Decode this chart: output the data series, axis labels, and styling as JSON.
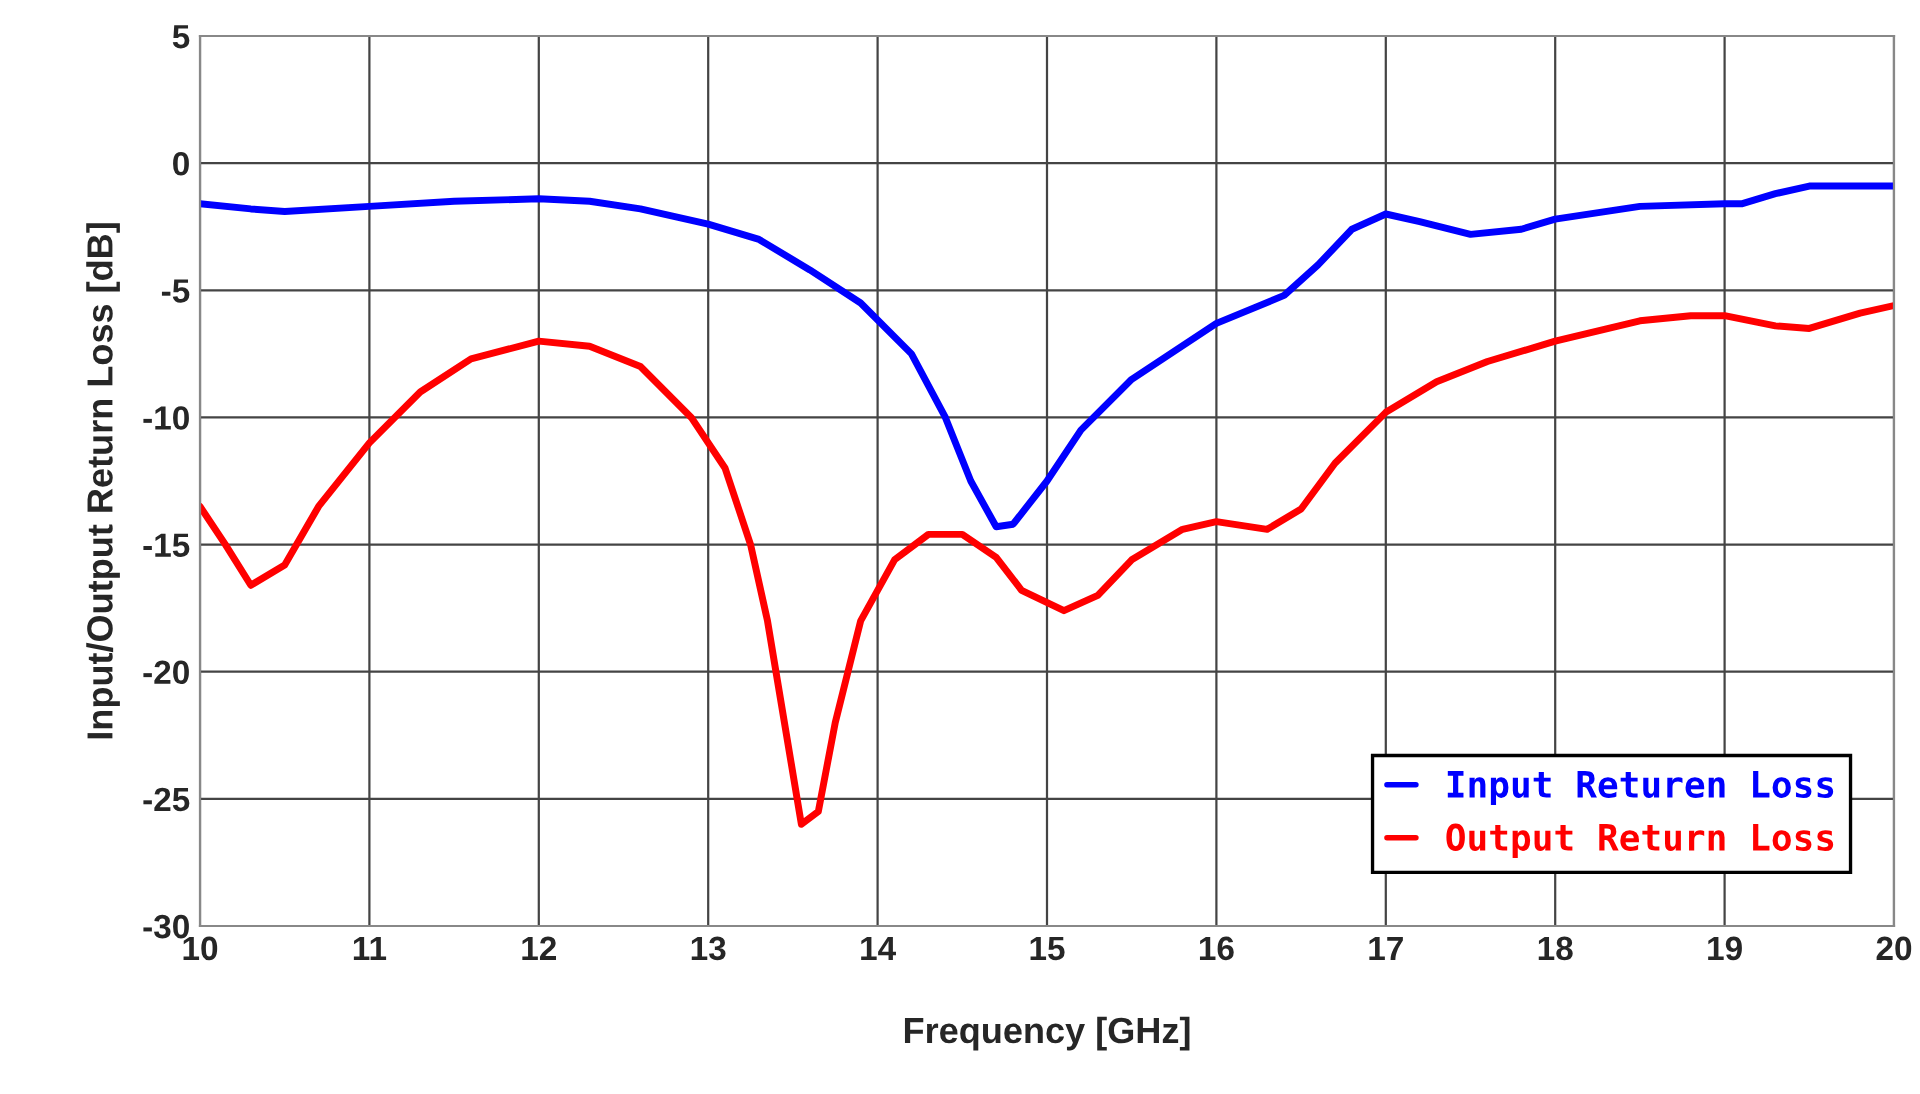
{
  "chart_data": {
    "type": "line",
    "xlabel": "Frequency [GHz]",
    "ylabel": "Input/Output Return Loss [dB]",
    "xlim": [
      10,
      20
    ],
    "xticks": [
      10,
      11,
      12,
      13,
      14,
      15,
      16,
      17,
      18,
      19,
      20
    ],
    "ylim": [
      -30,
      5
    ],
    "yticks": [
      -30,
      -25,
      -20,
      -15,
      -10,
      -5,
      0,
      5
    ],
    "grid": true,
    "legend": "bottom right",
    "marker": "none",
    "line_style": "solid",
    "series": [
      {
        "name": "Input Returen Loss",
        "color": "#0000ff",
        "x": [
          10,
          10.3,
          10.5,
          11,
          11.5,
          12,
          12.3,
          12.6,
          13,
          13.3,
          13.6,
          13.9,
          14.2,
          14.4,
          14.55,
          14.7,
          14.8,
          15,
          15.2,
          15.5,
          16,
          16.4,
          16.6,
          16.8,
          17,
          17.2,
          17.5,
          17.8,
          18,
          18.5,
          19,
          19.1,
          19.3,
          19.5,
          20
        ],
        "values": [
          -1.6,
          -1.8,
          -1.9,
          -1.7,
          -1.5,
          -1.4,
          -1.5,
          -1.8,
          -2.4,
          -3.0,
          -4.2,
          -5.5,
          -7.5,
          -10,
          -12.5,
          -14.3,
          -14.2,
          -12.5,
          -10.5,
          -8.5,
          -6.3,
          -5.2,
          -4.0,
          -2.6,
          -2.0,
          -2.3,
          -2.8,
          -2.6,
          -2.2,
          -1.7,
          -1.6,
          -1.6,
          -1.2,
          -0.9,
          -0.9
        ]
      },
      {
        "name": "Output Return Loss",
        "color": "#ff0000",
        "x": [
          10,
          10.15,
          10.3,
          10.5,
          10.7,
          11,
          11.3,
          11.6,
          12,
          12.3,
          12.6,
          12.9,
          13.1,
          13.25,
          13.35,
          13.45,
          13.55,
          13.65,
          13.75,
          13.9,
          14.1,
          14.3,
          14.5,
          14.7,
          14.85,
          15.1,
          15.3,
          15.5,
          15.8,
          16,
          16.3,
          16.5,
          16.7,
          17,
          17.3,
          17.6,
          18,
          18.5,
          18.8,
          19,
          19.3,
          19.5,
          19.8,
          20
        ],
        "values": [
          -13.5,
          -15,
          -16.6,
          -15.8,
          -13.5,
          -11,
          -9.0,
          -7.7,
          -7.0,
          -7.2,
          -8,
          -10,
          -12,
          -15,
          -18,
          -22,
          -26,
          -25.5,
          -22,
          -18,
          -15.6,
          -14.6,
          -14.6,
          -15.5,
          -16.8,
          -17.6,
          -17,
          -15.6,
          -14.4,
          -14.1,
          -14.4,
          -13.6,
          -11.8,
          -9.8,
          -8.6,
          -7.8,
          -7.0,
          -6.2,
          -6.0,
          -6.0,
          -6.4,
          -6.5,
          -5.9,
          -5.6
        ]
      }
    ]
  }
}
